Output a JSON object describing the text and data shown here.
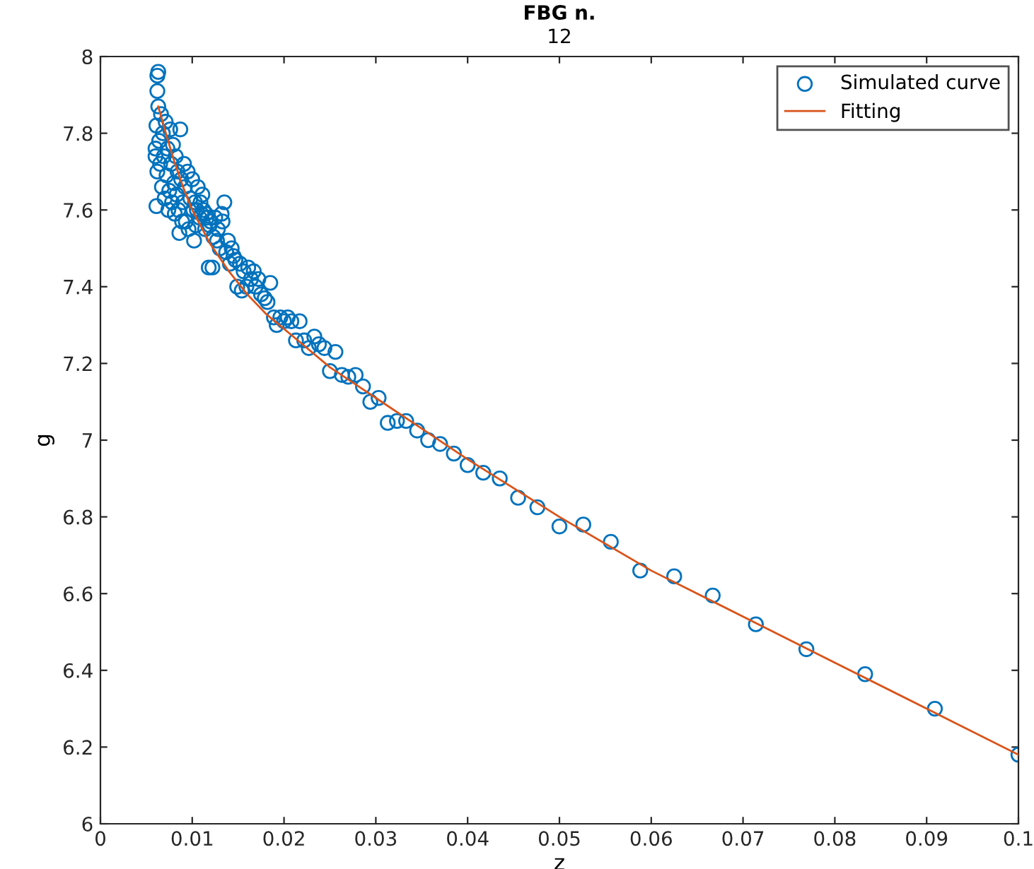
{
  "chart_data": {
    "type": "scatter",
    "title": "FBG n.",
    "subtitle": "12",
    "xlabel": "z",
    "ylabel": "g",
    "xlim": [
      0,
      0.1
    ],
    "xticks": [
      0,
      0.01,
      0.02,
      0.03,
      0.04,
      0.05,
      0.06,
      0.07,
      0.08,
      0.09,
      0.1
    ],
    "ylim": [
      6,
      8
    ],
    "yticks": [
      6,
      6.2,
      6.4,
      6.6,
      6.8,
      7,
      7.2,
      7.4,
      7.6,
      7.8,
      8
    ],
    "grid": false,
    "legend": "top right",
    "marker": "circle",
    "series": [
      {
        "name": "Simulated curve",
        "color": "#0072bd",
        "x": [
          0.1,
          0.0909,
          0.0833,
          0.0769,
          0.0714,
          0.0667,
          0.0625,
          0.0588,
          0.0556,
          0.0526,
          0.05,
          0.0476,
          0.0455,
          0.0435,
          0.0417,
          0.04,
          0.0385,
          0.037,
          0.0357,
          0.0345,
          0.0333,
          0.0323,
          0.0313,
          0.0303,
          0.0294,
          0.0286,
          0.0278,
          0.027,
          0.0263,
          0.0256,
          0.025,
          0.0244,
          0.0238,
          0.0233,
          0.0227,
          0.0222,
          0.0217,
          0.0213,
          0.0208,
          0.0204,
          0.02,
          0.0196,
          0.0192,
          0.0189,
          0.0185,
          0.0182,
          0.0179,
          0.0175,
          0.0172,
          0.0169,
          0.0167,
          0.0164,
          0.0161,
          0.0159,
          0.0156,
          0.0154,
          0.0152,
          0.0149,
          0.0147,
          0.0145,
          0.0143,
          0.0141,
          0.0139,
          0.0137,
          0.0135,
          0.0133,
          0.0132,
          0.013,
          0.0128,
          0.0127,
          0.0125,
          0.0123,
          0.0122,
          0.012,
          0.0119,
          0.0118,
          0.0116,
          0.0115,
          0.0114,
          0.0112,
          0.0111,
          0.011,
          0.0109,
          0.0108,
          0.0106,
          0.0105,
          0.0104,
          0.0103,
          0.0102,
          0.0101,
          0.01,
          0.0098,
          0.0096,
          0.0095,
          0.0093,
          0.0092,
          0.0091,
          0.009,
          0.0089,
          0.0088,
          0.0087,
          0.0086,
          0.0085,
          0.0084,
          0.0083,
          0.0082,
          0.0081,
          0.008,
          0.0079,
          0.0078,
          0.0077,
          0.0076,
          0.0075,
          0.0074,
          0.0073,
          0.0072,
          0.0071,
          0.007,
          0.0069,
          0.0068,
          0.0067,
          0.0066,
          0.0065,
          0.0064,
          0.0063,
          0.0062,
          0.0062,
          0.0061,
          0.0061,
          0.006,
          0.006,
          0.0062,
          0.0063
        ],
        "values": [
          6.18,
          6.3,
          6.39,
          6.455,
          6.52,
          6.595,
          6.645,
          6.66,
          6.735,
          6.78,
          6.775,
          6.825,
          6.85,
          6.9,
          6.915,
          6.935,
          6.965,
          6.99,
          7.0,
          7.025,
          7.05,
          7.05,
          7.045,
          7.11,
          7.1,
          7.14,
          7.17,
          7.165,
          7.17,
          7.23,
          7.18,
          7.24,
          7.25,
          7.27,
          7.24,
          7.26,
          7.31,
          7.26,
          7.31,
          7.32,
          7.31,
          7.32,
          7.3,
          7.32,
          7.41,
          7.36,
          7.37,
          7.38,
          7.42,
          7.4,
          7.44,
          7.42,
          7.45,
          7.4,
          7.44,
          7.39,
          7.46,
          7.4,
          7.47,
          7.48,
          7.5,
          7.46,
          7.52,
          7.49,
          7.62,
          7.57,
          7.59,
          7.5,
          7.55,
          7.52,
          7.58,
          7.53,
          7.45,
          7.57,
          7.56,
          7.45,
          7.58,
          7.59,
          7.55,
          7.6,
          7.64,
          7.59,
          7.62,
          7.58,
          7.66,
          7.6,
          7.56,
          7.62,
          7.52,
          7.6,
          7.68,
          7.63,
          7.55,
          7.7,
          7.57,
          7.66,
          7.72,
          7.62,
          7.57,
          7.68,
          7.81,
          7.54,
          7.6,
          7.7,
          7.64,
          7.74,
          7.59,
          7.67,
          7.77,
          7.62,
          7.72,
          7.81,
          7.65,
          7.6,
          7.76,
          7.69,
          7.83,
          7.63,
          7.74,
          7.8,
          7.66,
          7.85,
          7.72,
          7.78,
          7.87,
          7.7,
          7.95,
          7.82,
          7.61,
          7.76,
          7.74,
          7.91,
          7.96
        ]
      },
      {
        "name": "Fitting",
        "color": "#d95319",
        "type": "line",
        "marker": "none",
        "x": [
          0.0063,
          0.007,
          0.008,
          0.009,
          0.01,
          0.012,
          0.014,
          0.016,
          0.018,
          0.02,
          0.025,
          0.03,
          0.035,
          0.04,
          0.05,
          0.06,
          0.07,
          0.08,
          0.09,
          0.1
        ],
        "values": [
          7.87,
          7.81,
          7.73,
          7.66,
          7.6,
          7.51,
          7.44,
          7.38,
          7.33,
          7.29,
          7.19,
          7.11,
          7.03,
          6.95,
          6.8,
          6.66,
          6.54,
          6.42,
          6.3,
          6.18
        ]
      }
    ]
  }
}
